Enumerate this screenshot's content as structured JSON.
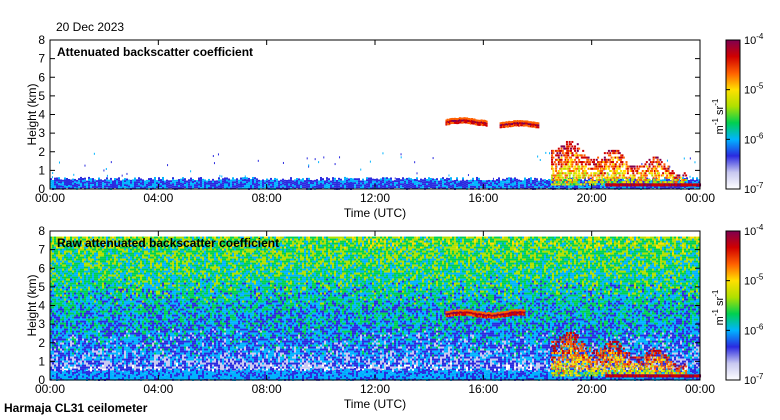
{
  "date": "20 Dec 2023",
  "station": "Harmaja CL31 ceilometer",
  "colorbar": {
    "ticks": [
      "10-7",
      "10-6",
      "10-5",
      "10-4"
    ],
    "exponents": [
      "-7",
      "-6",
      "-5",
      "-4"
    ],
    "unit_m": "m",
    "unit_m_exp": "-1",
    "unit_sr": "sr",
    "unit_sr_exp": "-1",
    "colors": [
      "#ffffff",
      "#c8c8f0",
      "#2a2ae0",
      "#00b4ff",
      "#00d050",
      "#b0e000",
      "#ffe000",
      "#ff6000",
      "#d00000",
      "#800050"
    ]
  },
  "chart_data": [
    {
      "type": "heatmap",
      "title": "Attenuated backscatter coefficient",
      "xlabel": "Time (UTC)",
      "ylabel": "Height (km)",
      "x_ticks": [
        "00:00",
        "04:00",
        "08:00",
        "12:00",
        "16:00",
        "20:00",
        "00:00"
      ],
      "y_ticks": [
        "0",
        "1",
        "2",
        "3",
        "4",
        "5",
        "6",
        "7",
        "8"
      ],
      "xlim_hours": [
        0,
        24
      ],
      "ylim_km": [
        0,
        8
      ],
      "color_scale": "log10",
      "clim": [
        1e-07,
        0.0001
      ],
      "features": [
        {
          "name": "boundary layer aerosol",
          "t_start_h": 0,
          "t_end_h": 24,
          "h_top_km": 0.55,
          "level": "low"
        },
        {
          "name": "elevated cloud layer",
          "t_start_h": 14.6,
          "t_end_h": 16.1,
          "h_km": 3.65,
          "level": "high"
        },
        {
          "name": "elevated cloud layer",
          "t_start_h": 16.6,
          "t_end_h": 18.0,
          "h_km": 3.5,
          "level": "high"
        },
        {
          "name": "precipitation and low cloud",
          "t_start_h": 18.5,
          "t_end_h": 23.5,
          "h_range_km": [
            0.3,
            2.5
          ],
          "level": "high"
        }
      ]
    },
    {
      "type": "heatmap",
      "title": "Raw attenuated backscatter coefficient",
      "xlabel": "Time (UTC)",
      "ylabel": "Height (km)",
      "x_ticks": [
        "00:00",
        "04:00",
        "08:00",
        "12:00",
        "16:00",
        "20:00",
        "00:00"
      ],
      "y_ticks": [
        "0",
        "1",
        "2",
        "3",
        "4",
        "5",
        "6",
        "7",
        "8"
      ],
      "xlim_hours": [
        0,
        24
      ],
      "ylim_km": [
        0,
        8
      ],
      "color_scale": "log10",
      "clim": [
        1e-07,
        0.0001
      ],
      "features": [
        {
          "name": "noise background",
          "t_start_h": 0,
          "t_end_h": 24,
          "h_range_km": [
            1,
            7.7
          ],
          "level": "medium"
        },
        {
          "name": "elevated cloud layer",
          "t_start_h": 14.6,
          "t_end_h": 17.5,
          "h_km": 3.6,
          "level": "high"
        },
        {
          "name": "precipitation and low cloud",
          "t_start_h": 18.5,
          "t_end_h": 23.5,
          "h_range_km": [
            0.3,
            2.5
          ],
          "level": "high"
        }
      ]
    }
  ]
}
